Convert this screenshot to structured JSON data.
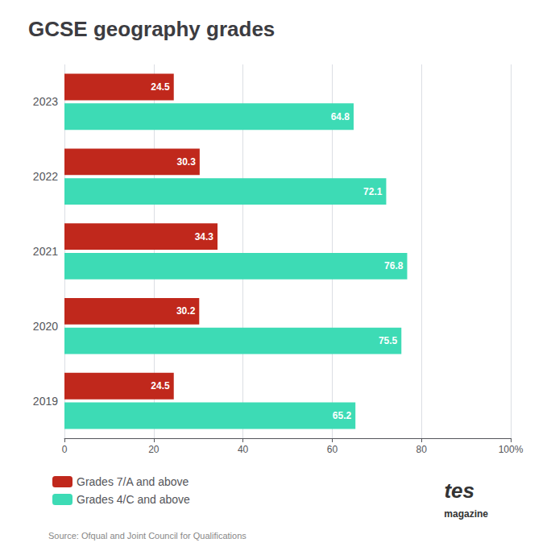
{
  "chart_data": {
    "type": "bar",
    "orientation": "horizontal",
    "title": "GCSE geography grades",
    "categories": [
      "2023",
      "2022",
      "2021",
      "2020",
      "2019"
    ],
    "series": [
      {
        "name": "Grades 7/A and above",
        "color": "#c0281c",
        "values": [
          24.5,
          30.3,
          34.3,
          30.2,
          24.5
        ]
      },
      {
        "name": "Grades 4/C and above",
        "color": "#3ddbb5",
        "values": [
          64.8,
          72.1,
          76.8,
          75.5,
          65.2
        ]
      }
    ],
    "xlim": [
      0,
      100
    ],
    "xticks": [
      0,
      20,
      40,
      60,
      80,
      {
        "value": 100,
        "label": "100%"
      }
    ],
    "grid": true,
    "data_labels": true,
    "legend": "bottom-left",
    "annotations": [
      "Source: Ofqual and Joint Council for Qualifications",
      "tes",
      "magazine"
    ]
  }
}
